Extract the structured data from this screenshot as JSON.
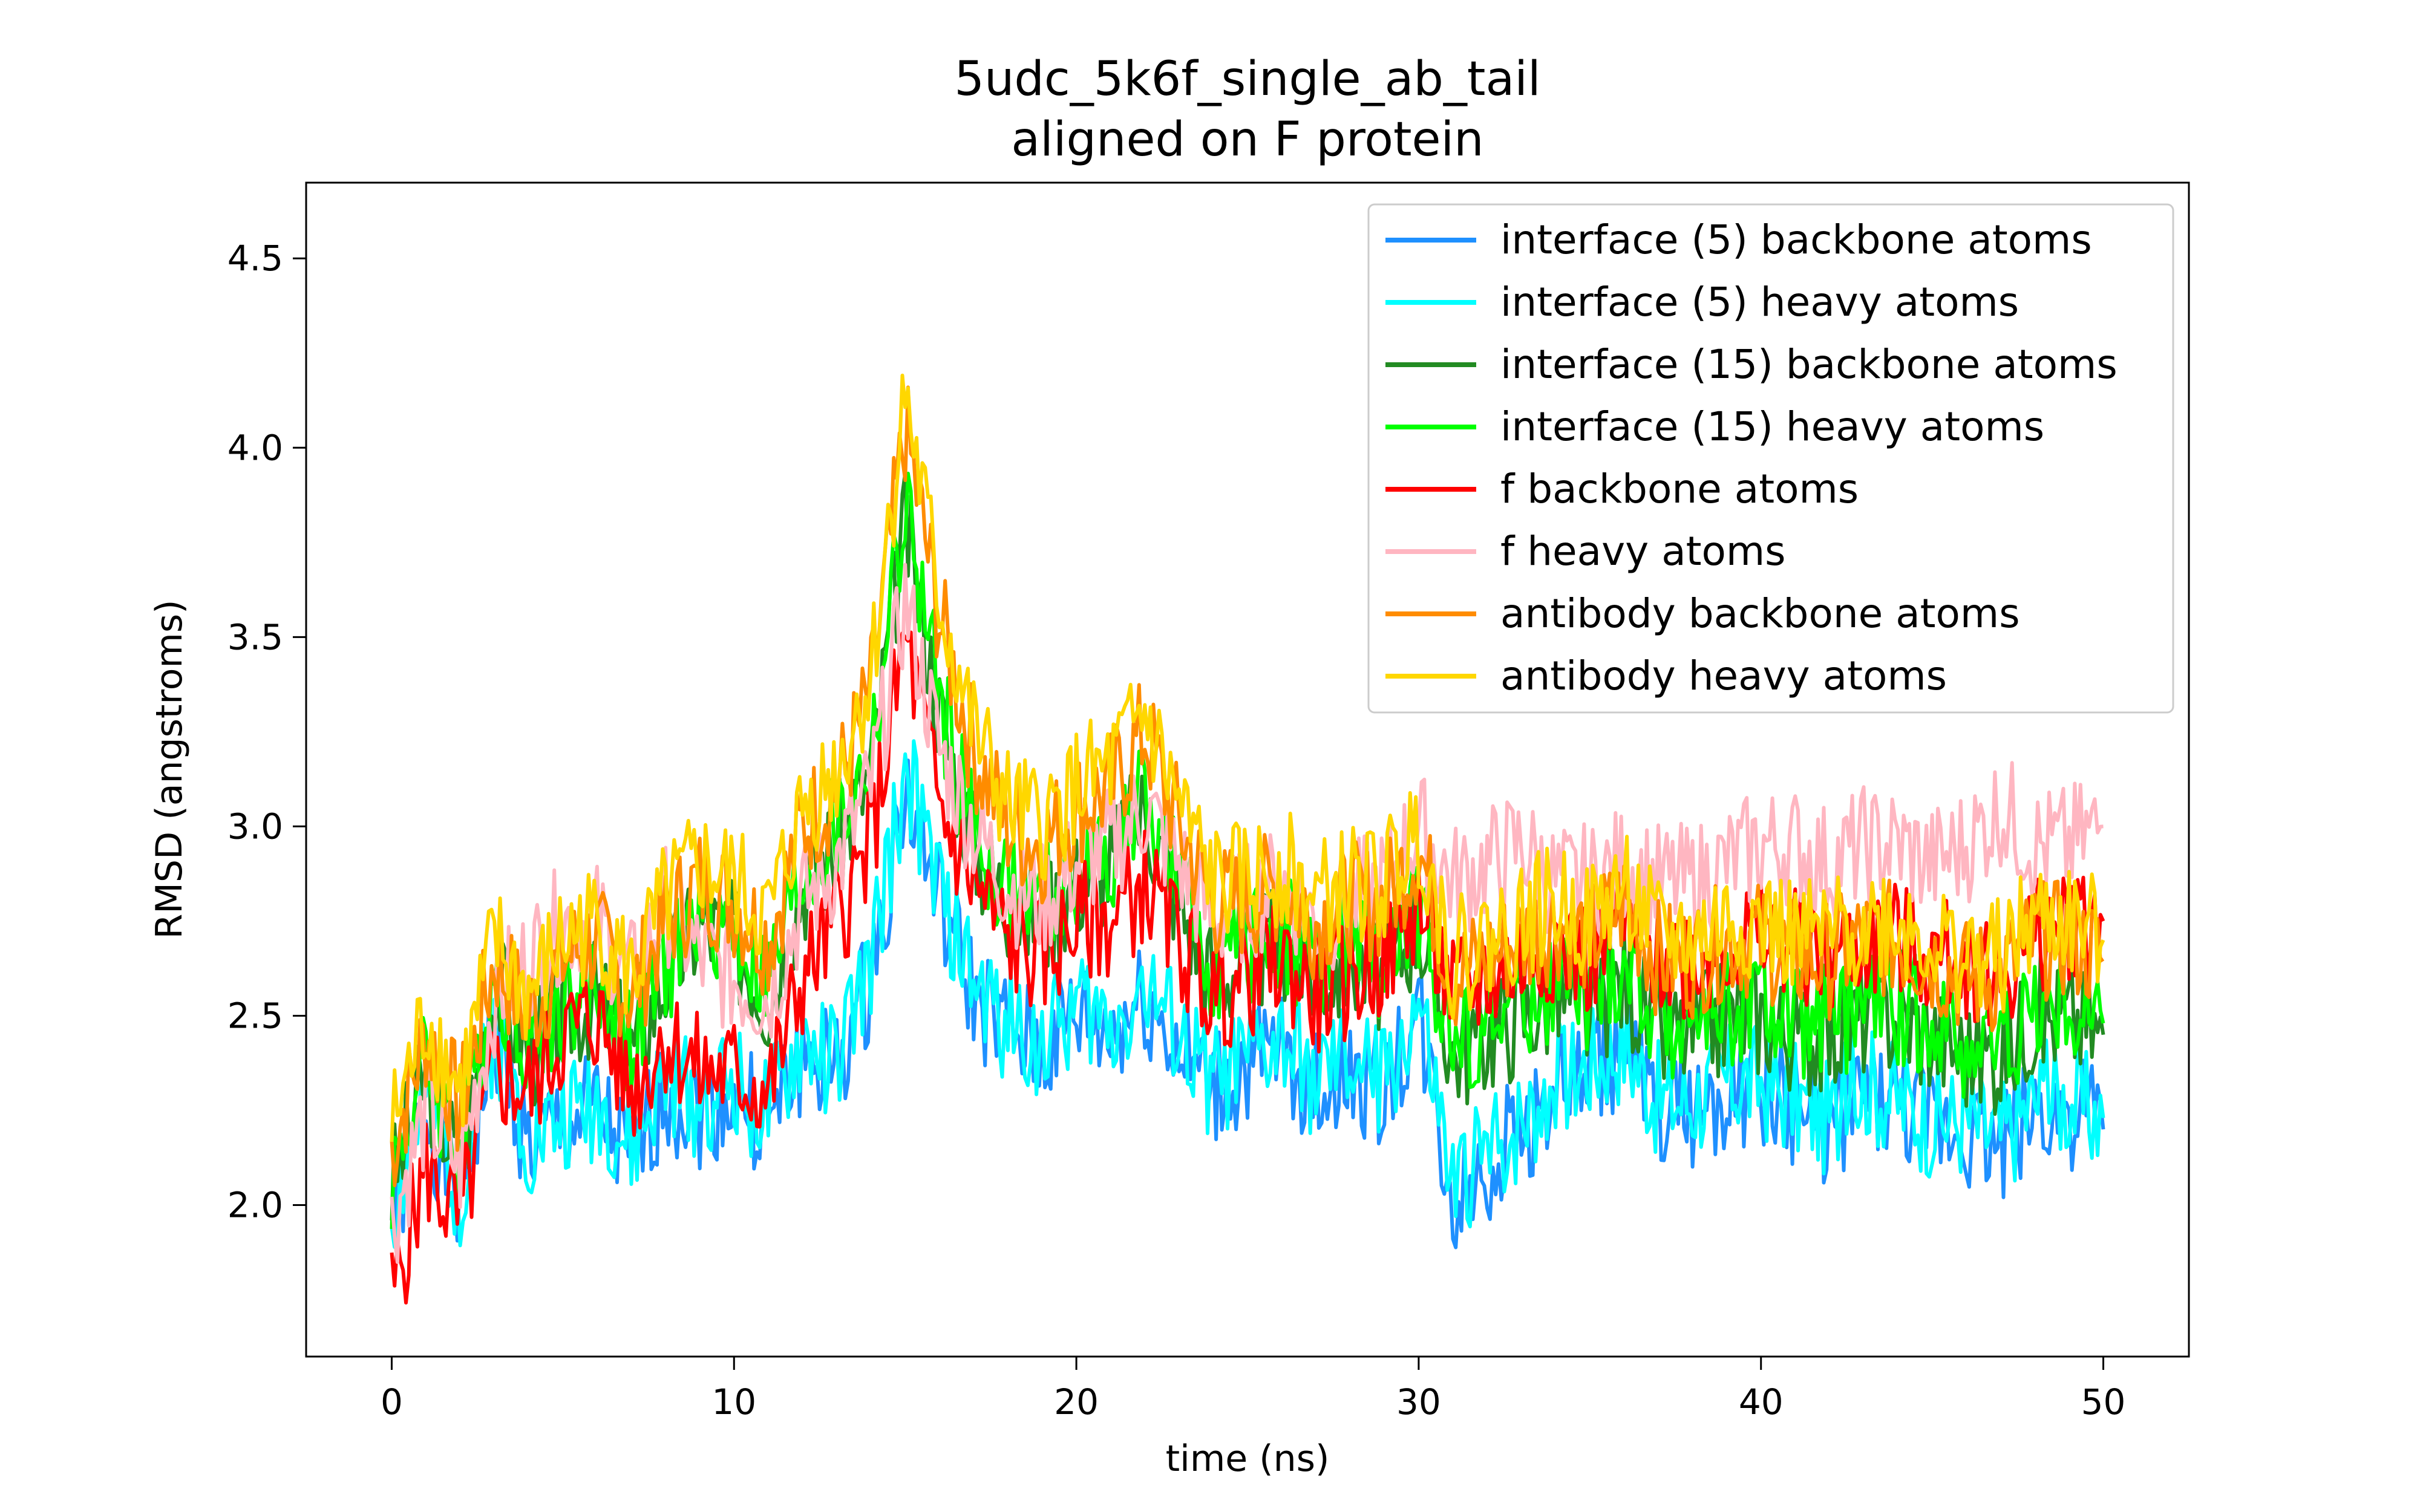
{
  "chart_data": {
    "type": "line",
    "title": "5udc_5k6f_single_ab_tail",
    "subtitle": "aligned on F protein",
    "xlabel": "time (ns)",
    "ylabel": "RMSD (angstroms)",
    "xlim": [
      -2.5,
      52.5
    ],
    "ylim": [
      1.6,
      4.7
    ],
    "xticks": [
      0,
      10,
      20,
      30,
      40,
      50
    ],
    "xtick_labels": [
      "0",
      "10",
      "20",
      "30",
      "40",
      "50"
    ],
    "yticks": [
      2.0,
      2.5,
      3.0,
      3.5,
      4.0,
      4.5
    ],
    "ytick_labels": [
      "2.0",
      "2.5",
      "3.0",
      "3.5",
      "4.0",
      "4.5"
    ],
    "grid": false,
    "legend": "top-right",
    "x": [
      0,
      1,
      2,
      3,
      4,
      5,
      6,
      7,
      8,
      9,
      10,
      11,
      12,
      13,
      14,
      15,
      16,
      17,
      18,
      19,
      20,
      21,
      22,
      23,
      24,
      25,
      26,
      27,
      28,
      29,
      30,
      31,
      32,
      33,
      34,
      35,
      36,
      37,
      38,
      39,
      40,
      41,
      42,
      43,
      44,
      45,
      46,
      47,
      48,
      49,
      50
    ],
    "series": [
      {
        "name": "interface (5) backbone atoms",
        "color": "#1e90ff",
        "values": [
          1.95,
          2.25,
          2.0,
          2.45,
          2.15,
          2.2,
          2.25,
          2.1,
          2.3,
          2.25,
          2.3,
          2.2,
          2.4,
          2.35,
          2.6,
          3.1,
          2.8,
          2.55,
          2.45,
          2.4,
          2.5,
          2.45,
          2.55,
          2.4,
          2.3,
          2.35,
          2.4,
          2.3,
          2.35,
          2.3,
          2.5,
          2.0,
          2.1,
          2.2,
          2.3,
          2.35,
          2.4,
          2.25,
          2.25,
          2.3,
          2.3,
          2.25,
          2.2,
          2.3,
          2.25,
          2.2,
          2.2,
          2.15,
          2.25,
          2.25,
          2.2
        ]
      },
      {
        "name": "interface (5) heavy atoms",
        "color": "#00ffff",
        "values": [
          1.98,
          2.28,
          2.03,
          2.48,
          2.18,
          2.23,
          2.28,
          2.13,
          2.33,
          2.28,
          2.33,
          2.23,
          2.43,
          2.38,
          2.63,
          3.15,
          2.83,
          2.58,
          2.48,
          2.43,
          2.53,
          2.48,
          2.58,
          2.43,
          2.33,
          2.38,
          2.43,
          2.33,
          2.38,
          2.33,
          2.53,
          2.03,
          2.13,
          2.23,
          2.33,
          2.38,
          2.43,
          2.28,
          2.28,
          2.33,
          2.33,
          2.28,
          2.23,
          2.33,
          2.28,
          2.23,
          2.23,
          2.18,
          2.28,
          2.28,
          2.23
        ]
      },
      {
        "name": "interface (15) backbone atoms",
        "color": "#228b22",
        "values": [
          2.05,
          2.35,
          2.1,
          2.6,
          2.4,
          2.5,
          2.55,
          2.4,
          2.6,
          2.75,
          2.7,
          2.55,
          2.85,
          2.95,
          3.15,
          3.8,
          3.3,
          2.95,
          2.8,
          2.75,
          2.85,
          2.9,
          3.05,
          2.8,
          2.6,
          2.65,
          2.7,
          2.6,
          2.65,
          2.6,
          2.75,
          2.4,
          2.45,
          2.5,
          2.55,
          2.5,
          2.6,
          2.45,
          2.45,
          2.5,
          2.5,
          2.45,
          2.45,
          2.5,
          2.5,
          2.45,
          2.4,
          2.4,
          2.5,
          2.5,
          2.45
        ]
      },
      {
        "name": "interface (15) heavy atoms",
        "color": "#00ff00",
        "values": [
          2.08,
          2.38,
          2.13,
          2.63,
          2.43,
          2.53,
          2.58,
          2.43,
          2.63,
          2.78,
          2.73,
          2.58,
          2.88,
          2.98,
          3.18,
          3.85,
          3.33,
          2.98,
          2.83,
          2.78,
          2.88,
          2.93,
          3.08,
          2.83,
          2.63,
          2.68,
          2.73,
          2.63,
          2.68,
          2.63,
          2.78,
          2.43,
          2.48,
          2.53,
          2.58,
          2.53,
          2.63,
          2.48,
          2.48,
          2.53,
          2.53,
          2.48,
          2.48,
          2.53,
          2.53,
          2.48,
          2.43,
          2.43,
          2.53,
          2.53,
          2.48
        ]
      },
      {
        "name": "f backbone atoms",
        "color": "#ff0000",
        "values": [
          1.75,
          2.1,
          1.95,
          2.35,
          2.3,
          2.45,
          2.5,
          2.3,
          2.45,
          2.35,
          2.35,
          2.3,
          2.6,
          2.75,
          2.95,
          3.5,
          3.05,
          2.85,
          2.7,
          2.65,
          2.75,
          2.75,
          2.85,
          2.7,
          2.55,
          2.6,
          2.65,
          2.55,
          2.6,
          2.65,
          2.8,
          2.55,
          2.6,
          2.65,
          2.7,
          2.65,
          2.75,
          2.65,
          2.65,
          2.7,
          2.7,
          2.7,
          2.65,
          2.7,
          2.7,
          2.65,
          2.65,
          2.6,
          2.7,
          2.75,
          2.75
        ]
      },
      {
        "name": "f heavy atoms",
        "color": "#ffb6c1",
        "values": [
          1.95,
          2.25,
          2.1,
          2.55,
          2.65,
          2.75,
          2.75,
          2.6,
          2.8,
          2.65,
          2.6,
          2.55,
          2.8,
          2.9,
          3.1,
          3.6,
          3.2,
          3.0,
          2.85,
          2.8,
          2.9,
          2.95,
          3.05,
          2.9,
          2.75,
          2.8,
          2.85,
          2.75,
          2.8,
          2.85,
          3.0,
          2.85,
          2.9,
          2.95,
          2.85,
          2.85,
          2.9,
          2.85,
          2.85,
          2.9,
          2.95,
          2.95,
          2.9,
          2.95,
          2.95,
          2.9,
          2.95,
          3.05,
          2.95,
          2.95,
          3.0
        ]
      },
      {
        "name": "antibody backbone atoms",
        "color": "#ff8c00",
        "values": [
          2.15,
          2.45,
          2.25,
          2.65,
          2.5,
          2.65,
          2.7,
          2.55,
          2.75,
          2.85,
          2.8,
          2.7,
          3.0,
          3.1,
          3.35,
          4.05,
          3.55,
          3.2,
          3.0,
          2.95,
          3.05,
          3.1,
          3.25,
          3.0,
          2.8,
          2.8,
          2.85,
          2.75,
          2.8,
          2.8,
          2.95,
          2.6,
          2.65,
          2.7,
          2.75,
          2.7,
          2.8,
          2.65,
          2.65,
          2.7,
          2.7,
          2.65,
          2.65,
          2.7,
          2.7,
          2.65,
          2.6,
          2.6,
          2.7,
          2.7,
          2.65
        ]
      },
      {
        "name": "antibody heavy atoms",
        "color": "#ffd700",
        "values": [
          2.2,
          2.5,
          2.3,
          2.7,
          2.55,
          2.7,
          2.75,
          2.6,
          2.8,
          2.9,
          2.85,
          2.75,
          3.05,
          3.15,
          3.4,
          4.15,
          3.6,
          3.25,
          3.05,
          3.0,
          3.1,
          3.15,
          3.3,
          3.05,
          2.85,
          2.85,
          2.9,
          2.8,
          2.85,
          2.85,
          3.0,
          2.65,
          2.7,
          2.75,
          2.8,
          2.75,
          2.85,
          2.7,
          2.7,
          2.75,
          2.75,
          2.7,
          2.7,
          2.75,
          2.75,
          2.7,
          2.65,
          2.65,
          2.75,
          2.75,
          2.7
        ]
      }
    ]
  }
}
